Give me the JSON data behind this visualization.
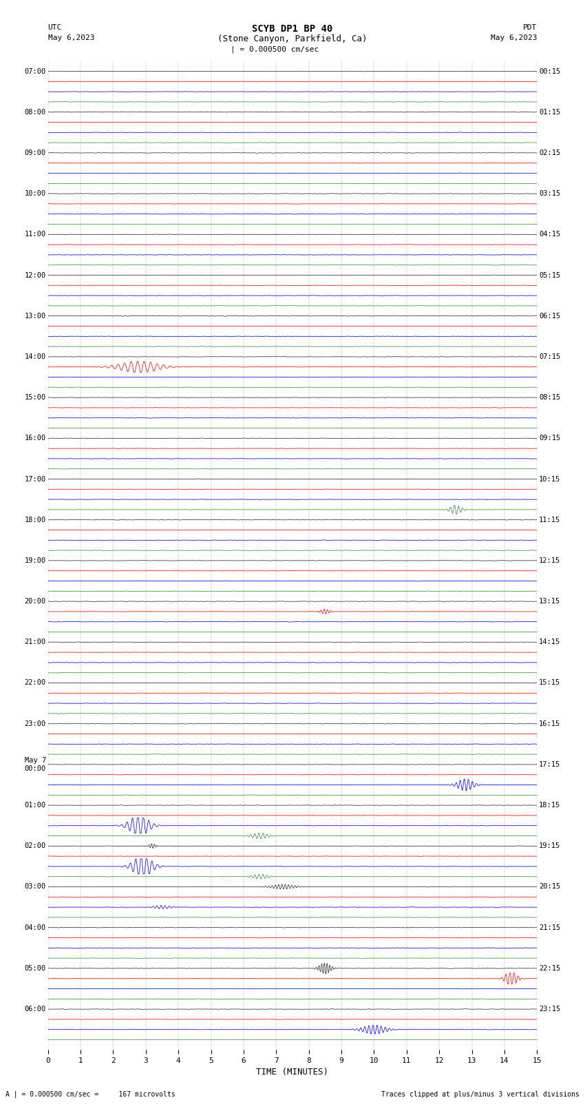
{
  "title_line1": "SCYB DP1 BP 40",
  "title_line2": "(Stone Canyon, Parkfield, Ca)",
  "scale_label": "| = 0.000500 cm/sec",
  "bottom_left": "A | = 0.000500 cm/sec =     167 microvolts",
  "bottom_right": "Traces clipped at plus/minus 3 vertical divisions",
  "xlabel": "TIME (MINUTES)",
  "xlim": [
    0,
    15
  ],
  "xticks": [
    0,
    1,
    2,
    3,
    4,
    5,
    6,
    7,
    8,
    9,
    10,
    11,
    12,
    13,
    14,
    15
  ],
  "bg_color": "#ffffff",
  "trace_colors": [
    "black",
    "red",
    "blue",
    "green"
  ],
  "utc_times": [
    "07:00",
    "08:00",
    "09:00",
    "10:00",
    "11:00",
    "12:00",
    "13:00",
    "14:00",
    "15:00",
    "16:00",
    "17:00",
    "18:00",
    "19:00",
    "20:00",
    "21:00",
    "22:00",
    "23:00",
    "May 7\n00:00",
    "01:00",
    "02:00",
    "03:00",
    "04:00",
    "05:00",
    "06:00"
  ],
  "pdt_times": [
    "00:15",
    "01:15",
    "02:15",
    "03:15",
    "04:15",
    "05:15",
    "06:15",
    "07:15",
    "08:15",
    "09:15",
    "10:15",
    "11:15",
    "12:15",
    "13:15",
    "14:15",
    "15:15",
    "16:15",
    "17:15",
    "18:15",
    "19:15",
    "20:15",
    "21:15",
    "22:15",
    "23:15"
  ],
  "special_events": [
    {
      "row": 7,
      "channel": 1,
      "time_min": 2.8,
      "amplitude": 2.0,
      "sigma": 0.5,
      "freq": 5
    },
    {
      "row": 10,
      "channel": 3,
      "time_min": 12.5,
      "amplitude": 1.5,
      "sigma": 0.15,
      "freq": 8
    },
    {
      "row": 13,
      "channel": 1,
      "time_min": 8.5,
      "amplitude": 0.8,
      "sigma": 0.12,
      "freq": 10
    },
    {
      "row": 17,
      "channel": 2,
      "time_min": 12.8,
      "amplitude": 2.0,
      "sigma": 0.2,
      "freq": 8
    },
    {
      "row": 18,
      "channel": 2,
      "time_min": 2.8,
      "amplitude": 3.5,
      "sigma": 0.25,
      "freq": 6
    },
    {
      "row": 18,
      "channel": 3,
      "time_min": 6.5,
      "amplitude": 1.0,
      "sigma": 0.2,
      "freq": 8
    },
    {
      "row": 19,
      "channel": 0,
      "time_min": 3.2,
      "amplitude": 0.8,
      "sigma": 0.08,
      "freq": 12
    },
    {
      "row": 19,
      "channel": 2,
      "time_min": 2.9,
      "amplitude": 3.5,
      "sigma": 0.25,
      "freq": 6
    },
    {
      "row": 19,
      "channel": 3,
      "time_min": 6.5,
      "amplitude": 0.8,
      "sigma": 0.2,
      "freq": 8
    },
    {
      "row": 20,
      "channel": 0,
      "time_min": 7.2,
      "amplitude": 0.8,
      "sigma": 0.3,
      "freq": 10
    },
    {
      "row": 20,
      "channel": 2,
      "time_min": 3.5,
      "amplitude": 0.6,
      "sigma": 0.2,
      "freq": 8
    },
    {
      "row": 22,
      "channel": 0,
      "time_min": 8.5,
      "amplitude": 1.8,
      "sigma": 0.15,
      "freq": 12
    },
    {
      "row": 22,
      "channel": 1,
      "time_min": 14.2,
      "amplitude": 2.5,
      "sigma": 0.15,
      "freq": 8
    },
    {
      "row": 23,
      "channel": 2,
      "time_min": 10.0,
      "amplitude": 1.5,
      "sigma": 0.3,
      "freq": 8
    }
  ]
}
